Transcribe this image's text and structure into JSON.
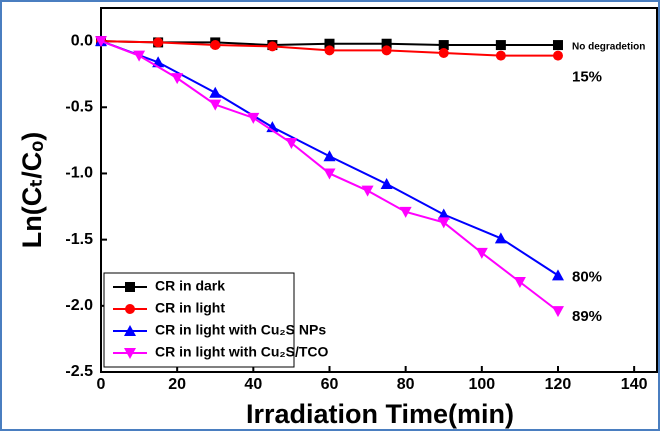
{
  "chart_data": {
    "type": "line",
    "xlabel": "Irradiation Time(min)",
    "ylabel": "Ln(Cₜ/Cₒ)",
    "xlim": [
      0,
      146
    ],
    "ylim": [
      -2.5,
      0.25
    ],
    "xticks": [
      0,
      20,
      40,
      60,
      80,
      100,
      120,
      140
    ],
    "yticks": [
      {
        "value": 0,
        "label": "0.0"
      },
      -0.5,
      {
        "value": -1,
        "label": "-1.0"
      },
      -1.5,
      {
        "value": -2,
        "label": "-2.0"
      },
      -2.5
    ],
    "legend": "lower left",
    "series": [
      {
        "name": "CR in dark",
        "color": "#000000",
        "marker": "square",
        "x": [
          0,
          15,
          30,
          45,
          60,
          75,
          90,
          105,
          120
        ],
        "values": [
          0,
          -0.01,
          -0.01,
          -0.03,
          -0.02,
          -0.02,
          -0.03,
          -0.03,
          -0.03
        ]
      },
      {
        "name": "CR in light",
        "color": "#ff0000",
        "marker": "circle",
        "x": [
          0,
          15,
          30,
          45,
          60,
          75,
          90,
          105,
          120
        ],
        "values": [
          0,
          -0.01,
          -0.03,
          -0.04,
          -0.07,
          -0.07,
          -0.09,
          -0.11,
          -0.11
        ]
      },
      {
        "name": "CR in light with Cu₂S NPs",
        "color": "#0000ff",
        "marker": "triangle",
        "x": [
          0,
          15,
          30,
          45,
          60,
          75,
          90,
          105,
          120
        ],
        "values": [
          0,
          -0.16,
          -0.39,
          -0.65,
          -0.87,
          -1.08,
          -1.31,
          -1.49,
          -1.77
        ]
      },
      {
        "name": "CR in light with Cu₂S/TCO",
        "color": "#ff00ff",
        "marker": "triangle-down",
        "x": [
          0,
          10,
          20,
          30,
          40,
          50,
          60,
          70,
          80,
          90,
          100,
          110,
          120
        ],
        "values": [
          0,
          -0.11,
          -0.28,
          -0.48,
          -0.58,
          -0.77,
          -1.0,
          -1.13,
          -1.29,
          -1.37,
          -1.6,
          -1.82,
          -2.04
        ]
      }
    ],
    "annotations": [
      "No degradetion",
      "15%",
      "80%",
      "89%"
    ]
  }
}
